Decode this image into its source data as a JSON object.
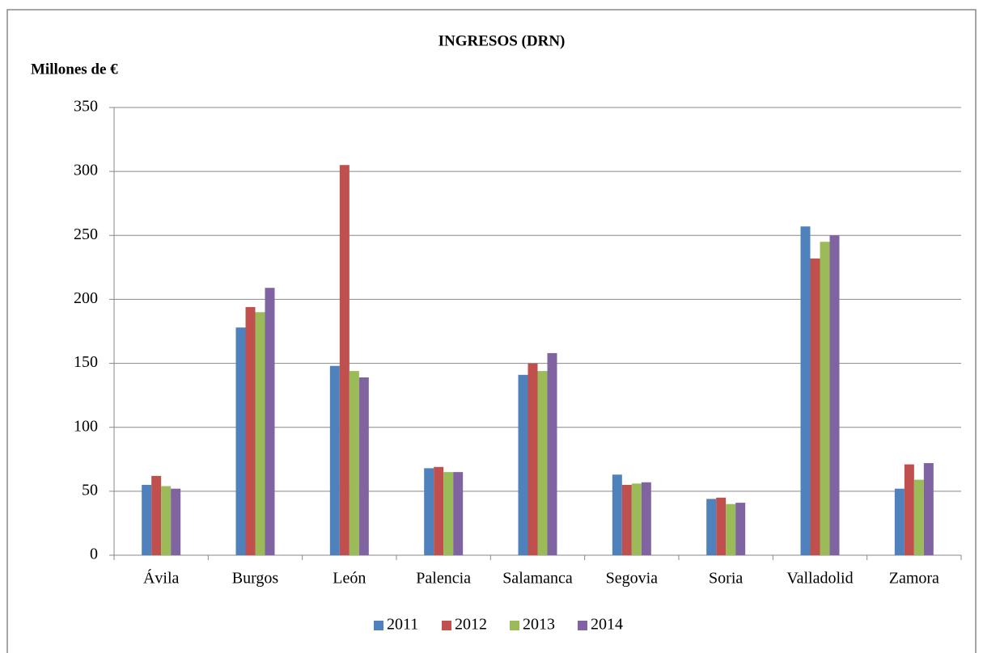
{
  "chart_data": {
    "type": "bar",
    "title": "INGRESOS (DRN)",
    "ylabel": "Millones de €",
    "categories": [
      "Ávila",
      "Burgos",
      "León",
      "Palencia",
      "Salamanca",
      "Segovia",
      "Soria",
      "Valladolid",
      "Zamora"
    ],
    "series": [
      {
        "name": "2011",
        "color": "#4f81bd",
        "values": [
          55,
          178,
          148,
          68,
          141,
          63,
          44,
          257,
          52
        ]
      },
      {
        "name": "2012",
        "color": "#c0504d",
        "values": [
          62,
          194,
          305,
          69,
          150,
          55,
          45,
          232,
          71
        ]
      },
      {
        "name": "2013",
        "color": "#9bbb59",
        "values": [
          54,
          190,
          144,
          65,
          144,
          56,
          40,
          245,
          59
        ]
      },
      {
        "name": "2014",
        "color": "#8064a2",
        "values": [
          52,
          209,
          139,
          65,
          158,
          57,
          41,
          250,
          72
        ]
      }
    ],
    "ylim": [
      0,
      350
    ],
    "yticks": [
      0,
      50,
      100,
      150,
      200,
      250,
      300,
      350
    ],
    "grid": true,
    "legend": "bottom"
  }
}
